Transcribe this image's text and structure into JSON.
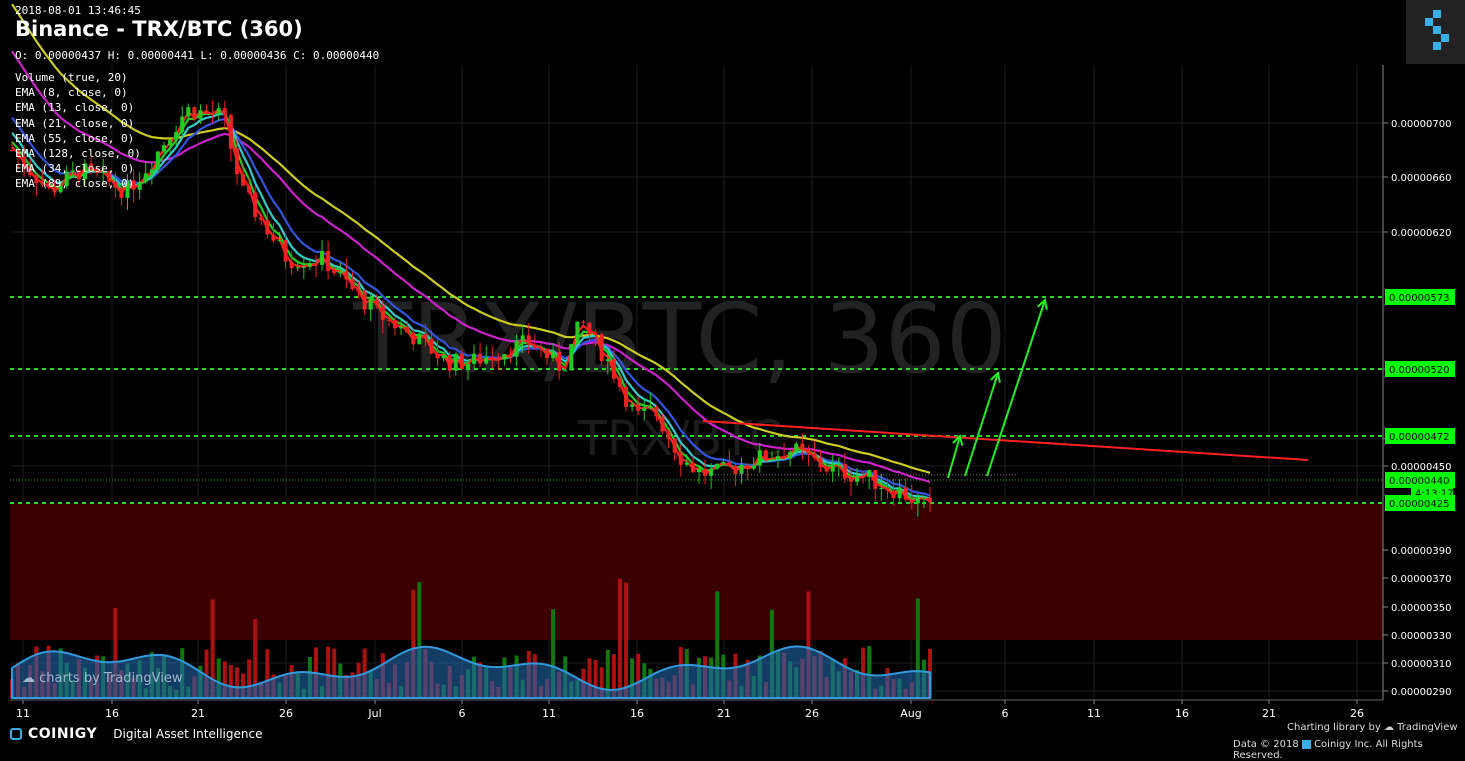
{
  "header": {
    "timestamp": "2018-08-01 13:46:45",
    "title": "Binance - TRX/BTC (360)",
    "ohlc": "O: 0.00000437 H: 0.00000441 L: 0.00000436 C: 0.00000440"
  },
  "indicators": [
    "Volume (true, 20)",
    "EMA (8, close, 0)",
    "EMA (13, close, 0)",
    "EMA (21, close, 0)",
    "EMA (55, close, 0)",
    "EMA (128, close, 0)",
    "EMA (34, close, 0)",
    "EMA (89, close, 0)"
  ],
  "watermark": {
    "main": "TRX/BTC, 360",
    "sub": "TRX/BTC"
  },
  "chart_data": {
    "type": "line",
    "subtype": "candlestick",
    "y_ticks": [
      "0.00000700",
      "0.00000660",
      "0.00000620",
      "0.00000520",
      "0.00000470",
      "0.00000450",
      "0.00000390",
      "0.00000370",
      "0.00000350",
      "0.00000330",
      "0.00000310",
      "0.00000290"
    ],
    "x_ticks": [
      "11",
      "16",
      "21",
      "26",
      "Jul",
      "6",
      "11",
      "16",
      "21",
      "26",
      "Aug",
      "6",
      "11",
      "16",
      "21",
      "26"
    ],
    "price_labels": [
      {
        "text": "0.00000573",
        "color": "#00ff00",
        "price": 573
      },
      {
        "text": "0.00000520",
        "color": "#00ff00",
        "price": 520
      },
      {
        "text": "0.00000472",
        "color": "#00ff00",
        "price": 472
      },
      {
        "text": "0.00000440",
        "color": "#00ff00",
        "price": 440
      },
      {
        "text": "4:13:17",
        "color": "#00ff00",
        "price": 432
      },
      {
        "text": "0.00000425",
        "color": "#00ff00",
        "price": 425
      }
    ],
    "horizontal_levels": [
      573,
      520,
      472,
      425
    ],
    "ema_colors": {
      "ema8": "#ff2020",
      "ema13": "#22cc22",
      "ema21": "#33cccc",
      "ema34": "#3355dd",
      "ema89": "#cc22cc",
      "ema128": "#cccc22"
    },
    "last_price": 440,
    "footer_note": "charts by TradingView"
  },
  "footer": {
    "brand": "COINIGY",
    "tagline": "Digital Asset Intelligence",
    "charting": "Charting library by",
    "tradingview": "TradingView",
    "copyright": "Data © 2018",
    "copyright2": "Coinigy Inc. All Rights Reserved."
  }
}
